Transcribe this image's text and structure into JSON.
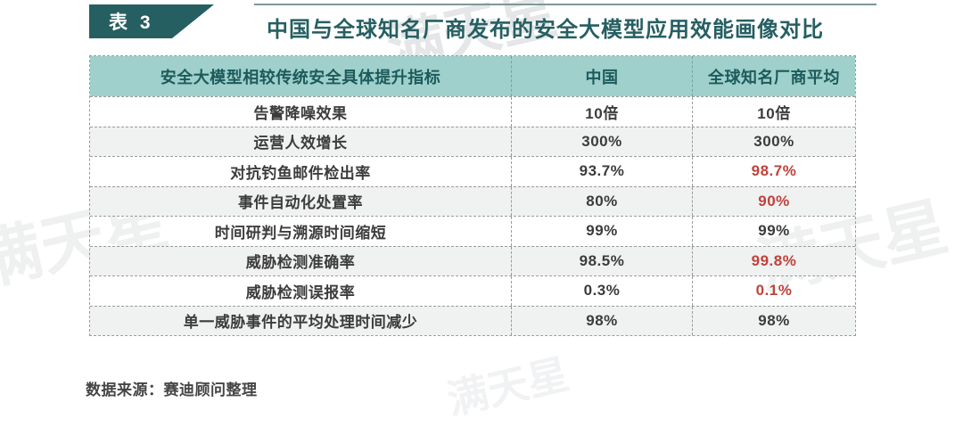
{
  "page": {
    "badge": "表 3",
    "title": "中国与全球知名厂商发布的安全大模型应用效能画像对比",
    "watermark": "满天星",
    "source_note": "数据来源：赛迪顾问整理"
  },
  "colors": {
    "accent_teal": "#265f62",
    "header_background": "#9fd0cb",
    "highlight_red": "#c0423b"
  },
  "chart_data": {
    "type": "table",
    "title": "中国与全球知名厂商发布的安全大模型应用效能画像对比",
    "columns": [
      "安全大模型相较传统安全具体提升指标",
      "中国",
      "全球知名厂商平均"
    ],
    "rows": [
      {
        "label": "告警降噪效果",
        "china": "10倍",
        "global": "10倍",
        "global_red": false
      },
      {
        "label": "运营人效增长",
        "china": "300%",
        "global": "300%",
        "global_red": false
      },
      {
        "label": "对抗钓鱼邮件检出率",
        "china": "93.7%",
        "global": "98.7%",
        "global_red": true
      },
      {
        "label": "事件自动化处置率",
        "china": "80%",
        "global": "90%",
        "global_red": true
      },
      {
        "label": "时间研判与溯源时间缩短",
        "china": "99%",
        "global": "99%",
        "global_red": false
      },
      {
        "label": "威胁检测准确率",
        "china": "98.5%",
        "global": "99.8%",
        "global_red": true
      },
      {
        "label": "威胁检测误报率",
        "china": "0.3%",
        "global": "0.1%",
        "global_red": true
      },
      {
        "label": "单一威胁事件的平均处理时间减少",
        "china": "98%",
        "global": "98%",
        "global_red": false
      }
    ],
    "source": "数据来源：赛迪顾问整理"
  }
}
